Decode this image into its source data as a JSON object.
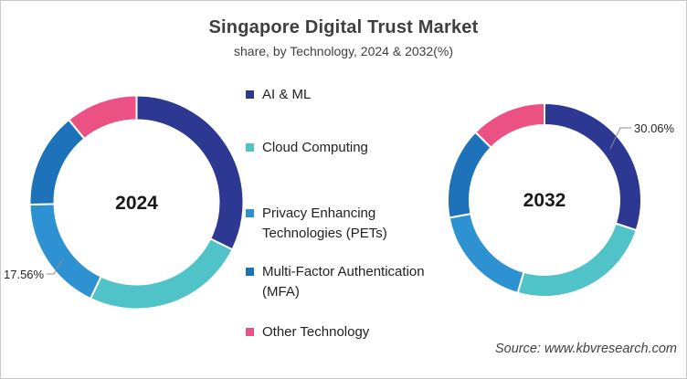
{
  "chart_data": {
    "type": "pie",
    "variant": "double-donut",
    "title": "Singapore Digital Trust Market",
    "subtitle": "share, by Technology, 2024 & 2032(%)",
    "categories": [
      "AI & ML",
      "Cloud Computing",
      "Privacy Enhancing Technologies (PETs)",
      "Multi-Factor Authentication (MFA)",
      "Other Technology"
    ],
    "colors": [
      "#2c3892",
      "#4fc3c8",
      "#2e92d2",
      "#1d72b9",
      "#ec5183"
    ],
    "legend_position": "center-column",
    "donuts": [
      {
        "label": "2024",
        "values": [
          32.3,
          24.8,
          17.56,
          14.4,
          10.94
        ],
        "annotation": {
          "category": "Privacy Enhancing Technologies (PETs)",
          "value": 17.56,
          "text": "17.56%"
        }
      },
      {
        "label": "2032",
        "values": [
          30.06,
          24.4,
          17.6,
          15.3,
          12.64
        ],
        "annotation": {
          "category": "AI & ML",
          "value": 30.06,
          "text": "30.06%"
        }
      }
    ],
    "source": "Source: www.kbvresearch.com"
  }
}
